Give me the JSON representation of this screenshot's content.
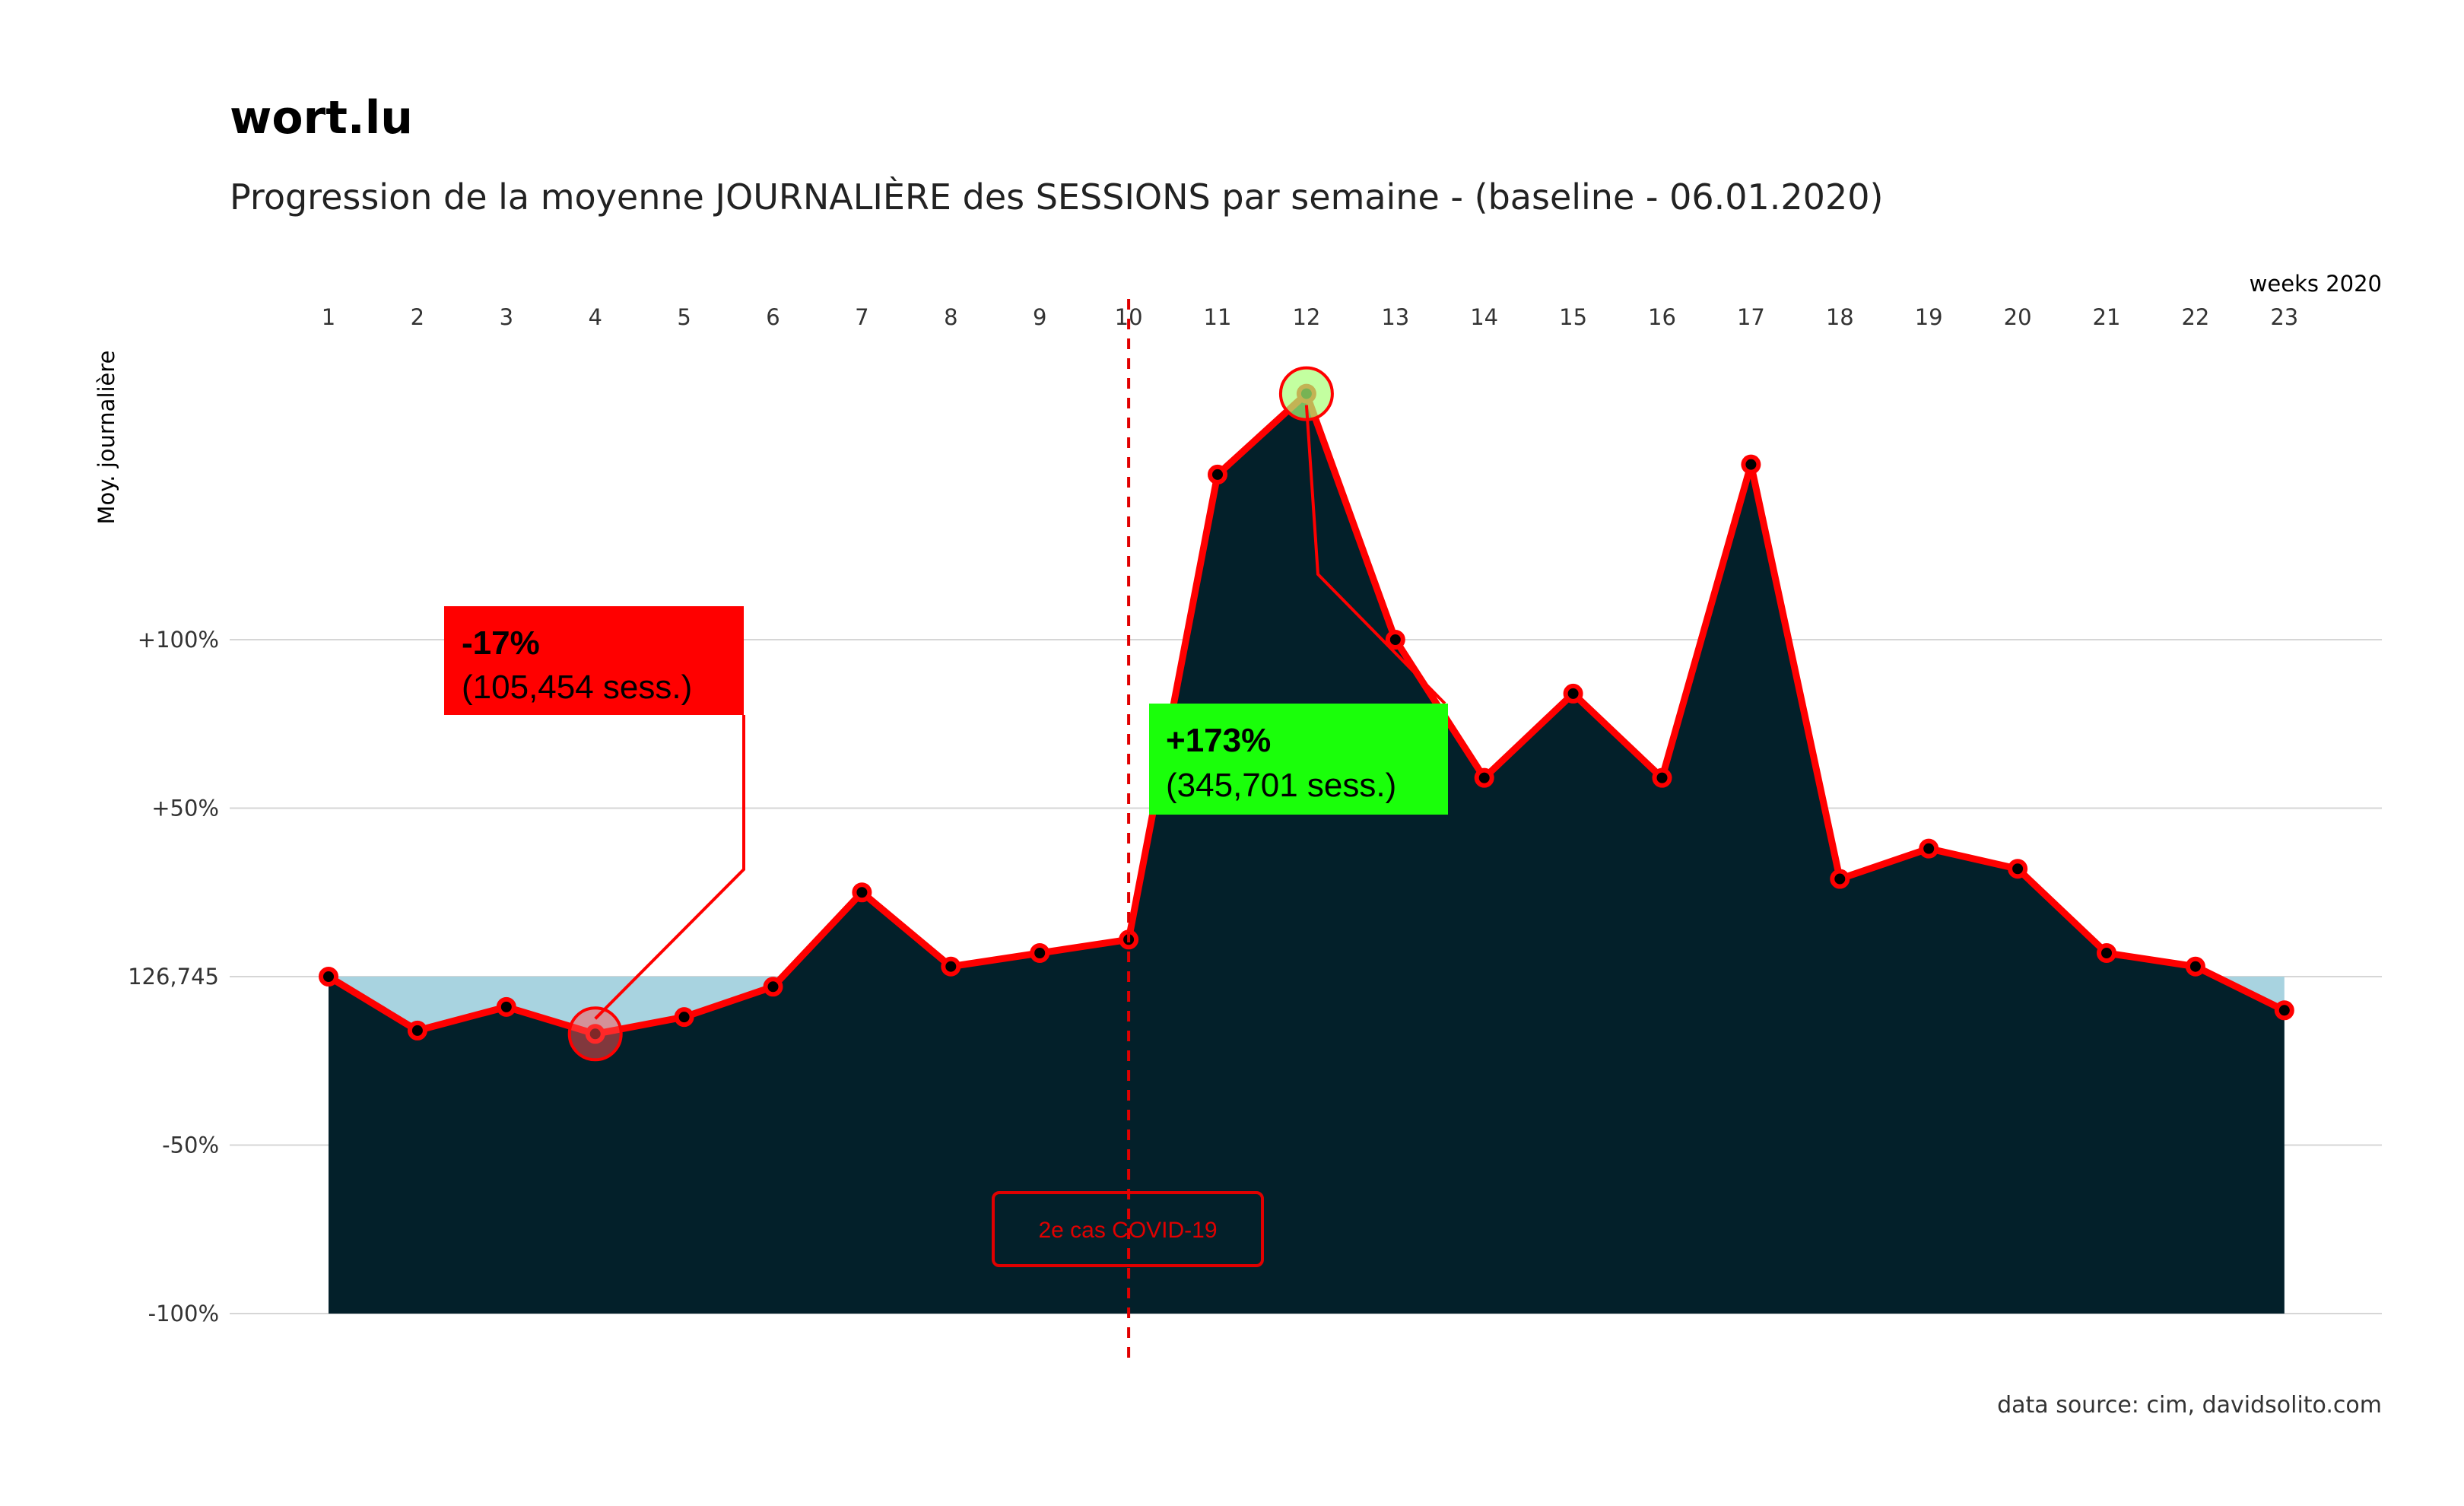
{
  "title": "wort.lu",
  "subtitle": "Progression de la moyenne JOURNALIÈRE des SESSIONS par semaine - (baseline - 06.01.2020)",
  "caption": "data source: cim, davidsolito.com",
  "colors": {
    "area": "#03202a",
    "baseline_fill": "#a8d3e0",
    "line": "#ff0000",
    "min_box": "#ff0000",
    "max_box": "#1aff0a",
    "grid": "#d6d6d6"
  },
  "chart_data": {
    "type": "area",
    "xlabel": "weeks 2020",
    "ylabel": "Moy. journalière",
    "x_position": "top",
    "x": [
      1,
      2,
      3,
      4,
      5,
      6,
      7,
      8,
      9,
      10,
      11,
      12,
      13,
      14,
      15,
      16,
      17,
      18,
      19,
      20,
      21,
      22,
      23
    ],
    "y_pct": [
      0,
      -16,
      -9,
      -17,
      -12,
      -3,
      25,
      3,
      7,
      11,
      149,
      173,
      100,
      59,
      84,
      59,
      152,
      29,
      38,
      32,
      7,
      3,
      -10
    ],
    "baseline": 126745,
    "baseline_label": "126,745",
    "ylim": [
      -100,
      200
    ],
    "yticks": [
      -100,
      -50,
      0,
      50,
      100
    ],
    "ytick_labels": [
      "-100%",
      "-50%",
      "126,745",
      "+50%",
      "+100%"
    ],
    "grid": true,
    "min_point": {
      "week": 4,
      "pct_label": "-17%",
      "value_label": "(105,454 sess.)"
    },
    "max_point": {
      "week": 12,
      "pct_label": "+173%",
      "value_label": "(345,701 sess.)"
    },
    "event": {
      "week": 10,
      "label": "2e cas COVID-19"
    }
  }
}
